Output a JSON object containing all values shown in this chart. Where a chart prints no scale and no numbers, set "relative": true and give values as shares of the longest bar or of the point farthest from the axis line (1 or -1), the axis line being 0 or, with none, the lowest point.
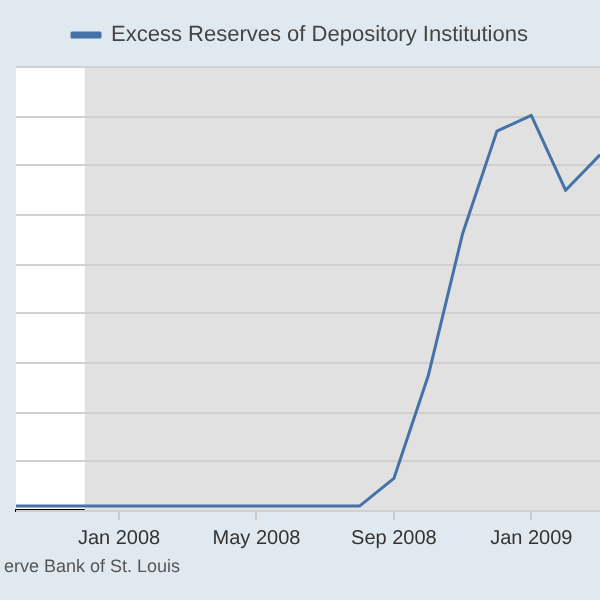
{
  "chart_data": {
    "type": "line",
    "relative": true,
    "legend": "top",
    "grid": true,
    "marker": "none",
    "line_style": "solid",
    "x": [
      "2007-10",
      "2007-11",
      "2007-12",
      "2008-01",
      "2008-02",
      "2008-03",
      "2008-04",
      "2008-05",
      "2008-06",
      "2008-07",
      "2008-08",
      "2008-09",
      "2008-10",
      "2008-11",
      "2008-12",
      "2009-01",
      "2009-02",
      "2009-03"
    ],
    "xlim": [
      "2007-10-01",
      "2009-03-01"
    ],
    "xticks": [
      {
        "value": "2008-01",
        "label": "Jan 2008"
      },
      {
        "value": "2008-05",
        "label": "May 2008"
      },
      {
        "value": "2008-09",
        "label": "Sep 2008"
      },
      {
        "value": "2009-01",
        "label": "Jan 2009"
      }
    ],
    "series": [
      {
        "name": "Excess Reserves of Depository Institutions",
        "color": "#4572a7",
        "values": [
          0.01,
          0.01,
          0.01,
          0.01,
          0.01,
          0.01,
          0.01,
          0.01,
          0.01,
          0.01,
          0.01,
          0.08,
          0.34,
          0.7,
          0.96,
          1,
          0.81,
          0.9
        ]
      }
    ],
    "bands": [
      {
        "axis": "x",
        "from": "2007-12",
        "to": "2009-03",
        "color": "#e1e1e1"
      }
    ],
    "annotations": [
      "erve Bank of St. Louis"
    ]
  }
}
